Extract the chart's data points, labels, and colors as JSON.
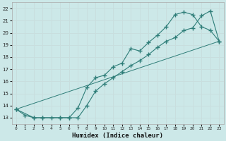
{
  "title": "",
  "xlabel": "Humidex (Indice chaleur)",
  "ylabel": "",
  "bg_color": "#cce8e8",
  "line_color": "#2e7d78",
  "grid_color": "#b0d8d8",
  "xlim": [
    -0.5,
    23.5
  ],
  "ylim": [
    12.5,
    22.5
  ],
  "xticks": [
    0,
    1,
    2,
    3,
    4,
    5,
    6,
    7,
    8,
    9,
    10,
    11,
    12,
    13,
    14,
    15,
    16,
    17,
    18,
    19,
    20,
    21,
    22,
    23
  ],
  "yticks": [
    13,
    14,
    15,
    16,
    17,
    18,
    19,
    20,
    21,
    22
  ],
  "line1_x": [
    0,
    1,
    2,
    3,
    4,
    5,
    6,
    7,
    8,
    9,
    10,
    11,
    12,
    13,
    14,
    15,
    16,
    17,
    18,
    19,
    20,
    21,
    22,
    23
  ],
  "line1_y": [
    13.7,
    13.2,
    13.0,
    13.0,
    13.0,
    13.0,
    13.0,
    13.0,
    14.0,
    15.2,
    15.8,
    16.3,
    16.8,
    17.3,
    17.7,
    18.2,
    18.8,
    19.3,
    19.6,
    20.2,
    20.4,
    21.4,
    21.8,
    19.3
  ],
  "line2_x": [
    0,
    2,
    3,
    5,
    6,
    7,
    8,
    9,
    10,
    11,
    12,
    13,
    14,
    15,
    16,
    17,
    18,
    19,
    20,
    21,
    22,
    23
  ],
  "line2_y": [
    13.7,
    13.0,
    13.0,
    13.0,
    13.0,
    13.8,
    15.5,
    16.3,
    16.5,
    17.2,
    17.5,
    18.7,
    18.5,
    19.2,
    19.8,
    20.5,
    21.5,
    21.7,
    21.5,
    20.5,
    20.2,
    19.3
  ],
  "line3_x": [
    0,
    23
  ],
  "line3_y": [
    13.7,
    19.3
  ]
}
